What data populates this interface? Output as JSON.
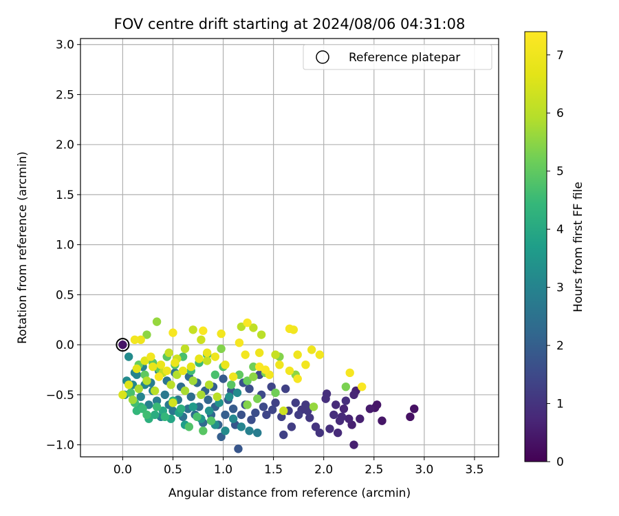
{
  "chart_data": {
    "type": "scatter",
    "title": "FOV centre drift starting at 2024/08/06 04:31:08",
    "xlabel": "Angular distance from reference (arcmin)",
    "ylabel": "Rotation from reference (arcmin)",
    "xlim": [
      -0.42,
      3.74
    ],
    "ylim": [
      -1.12,
      3.06
    ],
    "xticks": [
      0.0,
      0.5,
      1.0,
      1.5,
      2.0,
      2.5,
      3.0,
      3.5
    ],
    "xtick_labels": [
      "0.0",
      "0.5",
      "1.0",
      "1.5",
      "2.0",
      "2.5",
      "3.0",
      "3.5"
    ],
    "yticks": [
      -1.0,
      -0.5,
      0.0,
      0.5,
      1.0,
      1.5,
      2.0,
      2.5,
      3.0
    ],
    "ytick_labels": [
      "−1.0",
      "−0.5",
      "0.0",
      "0.5",
      "1.0",
      "1.5",
      "2.0",
      "2.5",
      "3.0"
    ],
    "grid": true,
    "legend": {
      "placement": "upper right",
      "entries": [
        "Reference platepar"
      ]
    },
    "colorbar": {
      "label": "Hours from first FF file",
      "colormap": "viridis",
      "range": [
        0,
        7.4
      ],
      "ticks": [
        0,
        1,
        2,
        3,
        4,
        5,
        6,
        7
      ],
      "tick_labels": [
        "0",
        "1",
        "2",
        "3",
        "4",
        "5",
        "6",
        "7"
      ]
    },
    "reference_point": {
      "name": "Reference platepar",
      "x": 0.0,
      "y": 0.0
    },
    "points": [
      [
        2.9,
        -0.64,
        0.3
      ],
      [
        2.86,
        -0.72,
        0.3
      ],
      [
        2.58,
        -0.76,
        0.4
      ],
      [
        2.53,
        -0.6,
        0.4
      ],
      [
        2.51,
        -0.63,
        0.4
      ],
      [
        2.46,
        -0.64,
        0.5
      ],
      [
        2.36,
        -0.74,
        0.6
      ],
      [
        2.32,
        -0.46,
        0.6
      ],
      [
        2.3,
        -0.5,
        0.7
      ],
      [
        2.28,
        -0.8,
        0.6
      ],
      [
        2.3,
        -1.0,
        0.6
      ],
      [
        2.25,
        -0.74,
        0.7
      ],
      [
        2.2,
        -0.64,
        0.7
      ],
      [
        2.18,
        -0.72,
        0.8
      ],
      [
        2.16,
        -0.76,
        0.8
      ],
      [
        2.14,
        -0.88,
        0.8
      ],
      [
        2.1,
        -0.7,
        0.9
      ],
      [
        2.06,
        -0.84,
        0.9
      ],
      [
        2.22,
        -0.56,
        0.9
      ],
      [
        2.12,
        -0.6,
        0.8
      ],
      [
        2.02,
        -0.54,
        0.9
      ],
      [
        2.03,
        -0.49,
        0.9
      ],
      [
        1.96,
        -0.88,
        1.0
      ],
      [
        1.92,
        -0.82,
        1.0
      ],
      [
        1.86,
        -0.73,
        1.1
      ],
      [
        1.82,
        -0.6,
        1.1
      ],
      [
        1.78,
        -0.65,
        1.1
      ],
      [
        1.72,
        -0.58,
        1.2
      ],
      [
        1.65,
        -0.66,
        1.2
      ],
      [
        1.58,
        -0.72,
        1.3
      ],
      [
        1.52,
        -0.58,
        1.3
      ],
      [
        1.49,
        -0.65,
        1.4
      ],
      [
        1.43,
        -0.7,
        1.4
      ],
      [
        1.4,
        -0.62,
        1.5
      ],
      [
        1.38,
        -0.5,
        1.5
      ],
      [
        1.32,
        -0.68,
        1.6
      ],
      [
        1.28,
        -0.75,
        1.6
      ],
      [
        1.22,
        -0.6,
        1.7
      ],
      [
        1.18,
        -0.7,
        1.7
      ],
      [
        1.15,
        -1.04,
        1.8
      ],
      [
        1.12,
        -0.8,
        1.8
      ],
      [
        1.1,
        -0.64,
        1.9
      ],
      [
        1.05,
        -0.55,
        1.9
      ],
      [
        1.02,
        -0.7,
        2.0
      ],
      [
        0.98,
        -0.92,
        2.0
      ],
      [
        0.95,
        -0.8,
        2.1
      ],
      [
        0.92,
        -0.62,
        2.1
      ],
      [
        0.88,
        -0.7,
        2.2
      ],
      [
        0.85,
        -0.55,
        2.2
      ],
      [
        0.8,
        -0.78,
        2.3
      ],
      [
        0.76,
        -0.62,
        2.3
      ],
      [
        0.72,
        -0.7,
        2.4
      ],
      [
        0.68,
        -0.52,
        2.4
      ],
      [
        0.65,
        -0.64,
        2.5
      ],
      [
        0.6,
        -0.72,
        2.5
      ],
      [
        0.55,
        -0.55,
        2.6
      ],
      [
        0.5,
        -0.66,
        2.6
      ],
      [
        0.46,
        -0.6,
        2.7
      ],
      [
        0.42,
        -0.5,
        2.7
      ],
      [
        0.38,
        -0.72,
        2.8
      ],
      [
        0.34,
        -0.56,
        2.8
      ],
      [
        0.3,
        -0.46,
        2.9
      ],
      [
        0.26,
        -0.6,
        2.9
      ],
      [
        0.22,
        -0.4,
        3.0
      ],
      [
        0.18,
        -0.52,
        3.0
      ],
      [
        0.14,
        -0.3,
        3.1
      ],
      [
        0.1,
        -0.4,
        3.1
      ],
      [
        0.06,
        -0.12,
        3.2
      ],
      [
        0.04,
        -0.36,
        3.2
      ],
      [
        0.02,
        -0.5,
        3.3
      ],
      [
        1.6,
        -0.9,
        1.3
      ],
      [
        1.68,
        -0.82,
        1.2
      ],
      [
        1.75,
        -0.7,
        1.2
      ],
      [
        1.84,
        -0.66,
        1.1
      ],
      [
        1.62,
        -0.44,
        1.3
      ],
      [
        1.48,
        -0.42,
        1.4
      ],
      [
        1.36,
        -0.3,
        1.5
      ],
      [
        1.26,
        -0.44,
        1.6
      ],
      [
        1.2,
        -0.38,
        1.7
      ],
      [
        1.08,
        -0.46,
        1.8
      ],
      [
        1.0,
        -0.34,
        1.9
      ],
      [
        0.9,
        -0.42,
        2.0
      ],
      [
        0.82,
        -0.46,
        2.1
      ],
      [
        0.74,
        -0.38,
        2.2
      ],
      [
        0.66,
        -0.32,
        2.3
      ],
      [
        0.58,
        -0.42,
        2.4
      ],
      [
        0.52,
        -0.28,
        2.5
      ],
      [
        0.44,
        -0.36,
        2.6
      ],
      [
        0.36,
        -0.26,
        2.7
      ],
      [
        0.28,
        -0.38,
        2.8
      ],
      [
        0.2,
        -0.22,
        2.9
      ],
      [
        0.12,
        -0.28,
        3.0
      ],
      [
        0.92,
        -0.8,
        3.3
      ],
      [
        0.86,
        -0.66,
        3.4
      ],
      [
        0.78,
        -0.74,
        3.5
      ],
      [
        0.7,
        -0.62,
        3.6
      ],
      [
        0.62,
        -0.8,
        3.7
      ],
      [
        0.56,
        -0.68,
        3.8
      ],
      [
        0.48,
        -0.74,
        3.9
      ],
      [
        0.4,
        -0.66,
        4.0
      ],
      [
        0.32,
        -0.7,
        4.1
      ],
      [
        0.26,
        -0.74,
        4.2
      ],
      [
        0.18,
        -0.62,
        4.3
      ],
      [
        0.14,
        -0.66,
        4.4
      ],
      [
        1.02,
        -0.86,
        3.2
      ],
      [
        1.1,
        -0.74,
        3.1
      ],
      [
        1.18,
        -0.82,
        3.0
      ],
      [
        1.26,
        -0.86,
        2.9
      ],
      [
        1.34,
        -0.88,
        2.8
      ],
      [
        0.96,
        -0.58,
        3.4
      ],
      [
        1.06,
        -0.52,
        3.3
      ],
      [
        1.14,
        -0.48,
        3.2
      ],
      [
        0.2,
        -0.64,
        4.5
      ],
      [
        0.24,
        -0.7,
        4.6
      ],
      [
        0.12,
        -0.58,
        4.6
      ],
      [
        0.08,
        -0.48,
        4.7
      ],
      [
        0.34,
        -0.62,
        4.5
      ],
      [
        0.42,
        -0.72,
        4.4
      ],
      [
        0.5,
        -0.56,
        4.3
      ],
      [
        0.58,
        -0.64,
        4.2
      ],
      [
        0.66,
        -0.82,
        4.8
      ],
      [
        0.74,
        -0.72,
        4.7
      ],
      [
        0.8,
        -0.86,
        4.9
      ],
      [
        0.88,
        -0.76,
        4.8
      ],
      [
        0.3,
        -0.18,
        4.9
      ],
      [
        0.36,
        -0.24,
        5.0
      ],
      [
        0.22,
        -0.3,
        5.0
      ],
      [
        0.16,
        -0.2,
        5.1
      ],
      [
        0.44,
        -0.12,
        4.9
      ],
      [
        0.52,
        -0.2,
        4.8
      ],
      [
        0.6,
        -0.12,
        4.7
      ],
      [
        0.68,
        -0.26,
        4.6
      ],
      [
        0.76,
        -0.18,
        4.5
      ],
      [
        0.84,
        -0.1,
        4.6
      ],
      [
        0.92,
        -0.3,
        4.7
      ],
      [
        1.0,
        -0.22,
        4.8
      ],
      [
        1.08,
        -0.4,
        4.9
      ],
      [
        1.16,
        -0.3,
        5.0
      ],
      [
        1.24,
        -0.36,
        5.1
      ],
      [
        1.3,
        -0.22,
        5.2
      ],
      [
        1.42,
        -0.28,
        5.3
      ],
      [
        1.56,
        -0.12,
        5.4
      ],
      [
        1.72,
        -0.3,
        5.5
      ],
      [
        1.9,
        -0.62,
        5.6
      ],
      [
        2.22,
        -0.42,
        5.3
      ],
      [
        1.52,
        -0.48,
        5.2
      ],
      [
        1.34,
        -0.54,
        5.3
      ],
      [
        1.24,
        -0.6,
        5.4
      ],
      [
        0.34,
        0.23,
        5.6
      ],
      [
        0.24,
        0.1,
        5.5
      ],
      [
        0.98,
        -0.04,
        5.4
      ],
      [
        1.3,
        -0.32,
        5.5
      ],
      [
        0.1,
        -0.55,
        5.7
      ],
      [
        0.16,
        -0.44,
        5.8
      ],
      [
        0.24,
        -0.36,
        5.9
      ],
      [
        0.32,
        -0.46,
        6.0
      ],
      [
        0.4,
        -0.28,
        6.1
      ],
      [
        0.48,
        -0.4,
        6.0
      ],
      [
        0.54,
        -0.3,
        5.9
      ],
      [
        0.62,
        -0.46,
        5.8
      ],
      [
        0.7,
        -0.36,
        5.7
      ],
      [
        0.78,
        -0.5,
        5.8
      ],
      [
        0.86,
        -0.4,
        5.9
      ],
      [
        0.94,
        -0.52,
        6.0
      ],
      [
        0.46,
        -0.08,
        6.2
      ],
      [
        0.54,
        -0.14,
        6.3
      ],
      [
        0.62,
        -0.04,
        6.1
      ],
      [
        0.7,
        0.15,
        6.2
      ],
      [
        0.78,
        0.05,
        6.3
      ],
      [
        0.84,
        -0.16,
        6.2
      ],
      [
        1.18,
        0.18,
        6.0
      ],
      [
        1.3,
        0.17,
        6.1
      ],
      [
        1.38,
        0.1,
        6.0
      ],
      [
        1.52,
        -0.1,
        6.2
      ],
      [
        1.6,
        -0.66,
        6.3
      ],
      [
        0.5,
        -0.58,
        6.4
      ],
      [
        0.0,
        -0.5,
        6.5
      ],
      [
        0.06,
        -0.4,
        6.6
      ],
      [
        0.14,
        -0.24,
        6.7
      ],
      [
        0.22,
        -0.16,
        6.6
      ],
      [
        0.3,
        -0.22,
        6.8
      ],
      [
        0.38,
        -0.2,
        6.9
      ],
      [
        0.44,
        -0.26,
        7.0
      ],
      [
        0.52,
        -0.18,
        6.9
      ],
      [
        0.6,
        -0.26,
        6.8
      ],
      [
        0.68,
        -0.22,
        6.7
      ],
      [
        0.76,
        -0.14,
        6.8
      ],
      [
        0.84,
        -0.08,
        6.9
      ],
      [
        0.92,
        -0.12,
        7.0
      ],
      [
        1.02,
        -0.2,
        6.9
      ],
      [
        1.1,
        -0.32,
        7.0
      ],
      [
        1.22,
        -0.1,
        7.1
      ],
      [
        1.36,
        -0.08,
        7.0
      ],
      [
        1.46,
        -0.3,
        7.1
      ],
      [
        1.56,
        -0.2,
        7.0
      ],
      [
        1.66,
        0.16,
        7.2
      ],
      [
        1.7,
        0.15,
        7.1
      ],
      [
        1.74,
        -0.1,
        7.0
      ],
      [
        1.82,
        -0.2,
        7.1
      ],
      [
        1.88,
        -0.05,
        7.0
      ],
      [
        1.96,
        -0.1,
        7.1
      ],
      [
        2.26,
        -0.28,
        7.2
      ],
      [
        2.38,
        -0.42,
        7.3
      ],
      [
        1.16,
        0.02,
        7.2
      ],
      [
        0.18,
        0.05,
        7.0
      ],
      [
        0.12,
        0.05,
        7.1
      ],
      [
        0.5,
        0.12,
        7.2
      ],
      [
        0.8,
        0.14,
        7.3
      ],
      [
        1.24,
        0.22,
        7.3
      ],
      [
        0.98,
        0.11,
        7.1
      ],
      [
        1.74,
        -0.34,
        7.2
      ],
      [
        1.66,
        -0.26,
        7.1
      ],
      [
        1.42,
        -0.25,
        7.3
      ],
      [
        1.36,
        -0.22,
        7.3
      ],
      [
        0.36,
        -0.32,
        7.2
      ],
      [
        0.28,
        -0.12,
        7.1
      ]
    ]
  }
}
